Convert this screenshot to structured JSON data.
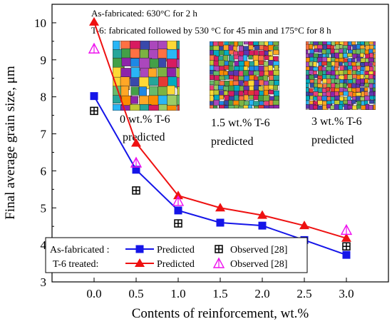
{
  "chart_data": {
    "type": "line",
    "xlabel": "Contents of reinforcement, wt.%",
    "ylabel": "Final average grain size, μm",
    "xlim": [
      -0.5,
      3.5
    ],
    "ylim": [
      3,
      10.5
    ],
    "x_ticks": [
      "0.0",
      "0.5",
      "1.0",
      "1.5",
      "2.0",
      "2.5",
      "3.0"
    ],
    "y_ticks": [
      "3",
      "4",
      "5",
      "6",
      "7",
      "8",
      "9",
      "10"
    ],
    "grid": false,
    "legend_position": "bottom-left",
    "series": [
      {
        "name": "Predicted",
        "group": "As-fabricated :",
        "kind": "line-marker",
        "marker": "square",
        "color": "#1515e8",
        "x": [
          0.0,
          0.5,
          1.0,
          1.5,
          2.0,
          2.5,
          3.0
        ],
        "y": [
          8.02,
          6.03,
          4.93,
          4.6,
          4.52,
          4.13,
          3.73
        ]
      },
      {
        "name": "Predicted",
        "group": "T-6 treated:",
        "kind": "line-marker",
        "marker": "triangle",
        "color": "#ee1111",
        "x": [
          0.0,
          0.5,
          1.0,
          1.5,
          2.0,
          2.5,
          3.0
        ],
        "y": [
          10.02,
          6.75,
          5.33,
          5.0,
          4.8,
          4.52,
          4.18
        ]
      },
      {
        "name": "Observed [28]",
        "group": "As-fabricated :",
        "kind": "scatter",
        "marker": "square-cross",
        "color": "#000000",
        "x": [
          0.0,
          0.5,
          1.0,
          3.0
        ],
        "y": [
          7.62,
          5.47,
          4.58,
          3.96
        ]
      },
      {
        "name": "Observed [28]",
        "group": "T-6 treated:",
        "kind": "scatter",
        "marker": "triangle-open",
        "color": "#ee11ee",
        "x": [
          0.0,
          0.5,
          1.0,
          3.0
        ],
        "y": [
          9.3,
          6.22,
          5.18,
          4.4
        ]
      }
    ],
    "annotations": [
      "As-fabricated: 630°C for 2 h",
      "T-6: fabricated followed by 530 °C  for 45 min and 175°C for 8 h"
    ],
    "insets": [
      {
        "caption_line1": "0 wt.% T-6",
        "caption_line2": "predicted",
        "grain": "coarse"
      },
      {
        "caption_line1": "1.5 wt.% T-6",
        "caption_line2": "predicted",
        "grain": "fine"
      },
      {
        "caption_line1": "3 wt.% T-6",
        "caption_line2": "predicted",
        "grain": "finer"
      }
    ],
    "legend": {
      "row1_group": "As-fabricated :",
      "row2_group": "T-6 treated:",
      "predicted_label": "Predicted",
      "observed_label": "Observed [28]"
    }
  }
}
